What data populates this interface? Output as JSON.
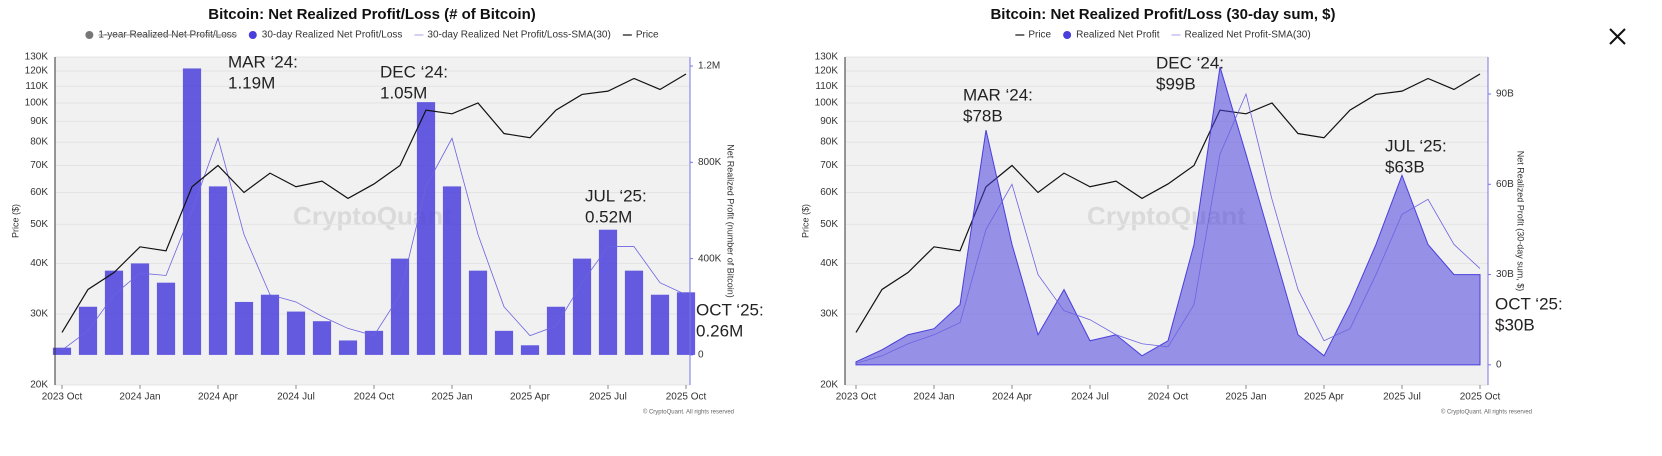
{
  "chart_data": [
    {
      "type": "combo",
      "title": "Bitcoin: Net Realized Profit/Loss (# of Bitcoin)",
      "y_label": "Price ($)",
      "y2_label": "Net Realized Profit (number of Bitcoin)",
      "watermark": "CryptoQuant",
      "footer": "© CryptoQuant. All rights reserved",
      "yscale": "log",
      "grid": true,
      "x": [
        "2023-10",
        "2023-11",
        "2023-12",
        "2024-01",
        "2024-02",
        "2024-03",
        "2024-04",
        "2024-05",
        "2024-06",
        "2024-07",
        "2024-08",
        "2024-09",
        "2024-10",
        "2024-11",
        "2024-12",
        "2025-01",
        "2025-02",
        "2025-03",
        "2025-04",
        "2025-05",
        "2025-06",
        "2025-07",
        "2025-08",
        "2025-09",
        "2025-10"
      ],
      "xticks": [
        {
          "value": "2023-10",
          "label": "2023 Oct"
        },
        {
          "value": "2024-01",
          "label": "2024 Jan"
        },
        {
          "value": "2024-04",
          "label": "2024 Apr"
        },
        {
          "value": "2024-07",
          "label": "2024 Jul"
        },
        {
          "value": "2024-10",
          "label": "2024 Oct"
        },
        {
          "value": "2025-01",
          "label": "2025 Jan"
        },
        {
          "value": "2025-04",
          "label": "2025 Apr"
        },
        {
          "value": "2025-07",
          "label": "2025 Jul"
        },
        {
          "value": "2025-10",
          "label": "2025 Oct"
        }
      ],
      "ylim": [
        20000,
        130000
      ],
      "yticks": [
        {
          "value": 20000,
          "label": "20K"
        },
        {
          "value": 30000,
          "label": "30K"
        },
        {
          "value": 40000,
          "label": "40K"
        },
        {
          "value": 50000,
          "label": "50K"
        },
        {
          "value": 60000,
          "label": "60K"
        },
        {
          "value": 70000,
          "label": "70K"
        },
        {
          "value": 80000,
          "label": "80K"
        },
        {
          "value": 90000,
          "label": "90K"
        },
        {
          "value": 100000,
          "label": "100K"
        },
        {
          "value": 110000,
          "label": "110K"
        },
        {
          "value": 120000,
          "label": "120K"
        },
        {
          "value": 130000,
          "label": "130K"
        }
      ],
      "y2lim": [
        -125000,
        1237500
      ],
      "y2ticks": [
        0,
        {
          "value": 400000,
          "label": "400K"
        },
        {
          "value": 800000,
          "label": "800K"
        },
        {
          "value": 1200000,
          "label": "1.2M"
        }
      ],
      "series": [
        {
          "name": "1-year Realized Net Profit/Loss",
          "color": "#777777",
          "hidden": true
        },
        {
          "name": "30-day Realized Net Profit/Loss",
          "color": "#4a3fdc",
          "type": "bar",
          "axis": "y2",
          "values": [
            30000,
            200000,
            350000,
            380000,
            300000,
            1190000,
            700000,
            220000,
            250000,
            180000,
            140000,
            60000,
            100000,
            400000,
            1050000,
            700000,
            350000,
            100000,
            40000,
            200000,
            400000,
            520000,
            350000,
            250000,
            260000
          ]
        },
        {
          "name": "30-day Realized Net Profit/Loss-SMA(30)",
          "color": "#6c63e0",
          "type": "line",
          "axis": "y2",
          "values": [
            20000,
            100000,
            250000,
            340000,
            330000,
            600000,
            900000,
            500000,
            250000,
            220000,
            160000,
            110000,
            80000,
            250000,
            700000,
            900000,
            500000,
            200000,
            80000,
            120000,
            300000,
            450000,
            450000,
            300000,
            250000
          ]
        },
        {
          "name": "Price",
          "color": "#111111",
          "type": "line",
          "values": [
            27000,
            34500,
            38000,
            44000,
            43000,
            62000,
            70000,
            60000,
            67000,
            62000,
            64000,
            58000,
            63000,
            70000,
            96000,
            94000,
            100000,
            84000,
            82000,
            96000,
            105000,
            107000,
            115000,
            108000,
            118000
          ]
        }
      ],
      "annotations": [
        [
          "MAR ‘24:",
          "1.19M"
        ],
        [
          "DEC ‘24:",
          "1.05M"
        ],
        [
          "JUL ‘25:",
          "0.52M"
        ],
        [
          "OCT ‘25:",
          "0.26M"
        ]
      ]
    },
    {
      "type": "combo",
      "title": "Bitcoin: Net Realized Profit/Loss (30-day sum, $)",
      "y_label": "Price ($)",
      "y2_label": "Net Realized Profit (30-day sum, $)",
      "watermark": "CryptoQuant",
      "footer": "© CryptoQuant. All rights reserved",
      "yscale": "log",
      "grid": true,
      "x": [
        "2023-10",
        "2023-11",
        "2023-12",
        "2024-01",
        "2024-02",
        "2024-03",
        "2024-04",
        "2024-05",
        "2024-06",
        "2024-07",
        "2024-08",
        "2024-09",
        "2024-10",
        "2024-11",
        "2024-12",
        "2025-01",
        "2025-02",
        "2025-03",
        "2025-04",
        "2025-05",
        "2025-06",
        "2025-07",
        "2025-08",
        "2025-09",
        "2025-10"
      ],
      "xticks": [
        {
          "value": "2023-10",
          "label": "2023 Oct"
        },
        {
          "value": "2024-01",
          "label": "2024 Jan"
        },
        {
          "value": "2024-04",
          "label": "2024 Apr"
        },
        {
          "value": "2024-07",
          "label": "2024 Jul"
        },
        {
          "value": "2024-10",
          "label": "2024 Oct"
        },
        {
          "value": "2025-01",
          "label": "2025 Jan"
        },
        {
          "value": "2025-04",
          "label": "2025 Apr"
        },
        {
          "value": "2025-07",
          "label": "2025 Jul"
        },
        {
          "value": "2025-10",
          "label": "2025 Oct"
        }
      ],
      "ylim": [
        20000,
        130000
      ],
      "yticks": [
        {
          "value": 20000,
          "label": "20K"
        },
        {
          "value": 30000,
          "label": "30K"
        },
        {
          "value": 40000,
          "label": "40K"
        },
        {
          "value": 50000,
          "label": "50K"
        },
        {
          "value": 60000,
          "label": "60K"
        },
        {
          "value": 70000,
          "label": "70K"
        },
        {
          "value": 80000,
          "label": "80K"
        },
        {
          "value": 90000,
          "label": "90K"
        },
        {
          "value": 100000,
          "label": "100K"
        },
        {
          "value": 110000,
          "label": "110K"
        },
        {
          "value": 120000,
          "label": "120K"
        },
        {
          "value": 130000,
          "label": "130K"
        }
      ],
      "y2lim": [
        -6700000000,
        102300000000
      ],
      "y2ticks": [
        0,
        {
          "value": 30000000000,
          "label": "30B"
        },
        {
          "value": 60000000000,
          "label": "60B"
        },
        {
          "value": 90000000000,
          "label": "90B"
        }
      ],
      "series": [
        {
          "name": "Price",
          "color": "#111111",
          "type": "line",
          "values": [
            27000,
            34500,
            38000,
            44000,
            43000,
            62000,
            70000,
            60000,
            67000,
            62000,
            64000,
            58000,
            63000,
            70000,
            96000,
            94000,
            100000,
            84000,
            82000,
            96000,
            105000,
            107000,
            115000,
            108000,
            118000
          ]
        },
        {
          "name": "Realized Net Profit",
          "color": "#4a3fdc",
          "type": "area",
          "axis": "y2",
          "values": [
            1000000000,
            5000000000,
            10000000000,
            12000000000,
            20000000000,
            78000000000,
            40000000000,
            10000000000,
            25000000000,
            8000000000,
            10000000000,
            3000000000,
            8000000000,
            40000000000,
            99000000000,
            70000000000,
            40000000000,
            10000000000,
            3000000000,
            20000000000,
            40000000000,
            63000000000,
            40000000000,
            30000000000,
            30000000000
          ]
        },
        {
          "name": "Realized Net Profit-SMA(30)",
          "color": "#6c63e0",
          "type": "line",
          "axis": "y2",
          "values": [
            500000000,
            3000000000,
            7000000000,
            10000000000,
            14000000000,
            45000000000,
            60000000000,
            30000000000,
            18000000000,
            15000000000,
            10000000000,
            7000000000,
            6000000000,
            20000000000,
            70000000000,
            90000000000,
            55000000000,
            25000000000,
            8000000000,
            12000000000,
            30000000000,
            50000000000,
            55000000000,
            40000000000,
            32000000000
          ]
        }
      ],
      "annotations": [
        [
          "MAR ‘24:",
          "$78B"
        ],
        [
          "DEC ‘24:",
          "$99B"
        ],
        [
          "JUL ‘25:",
          "$63B"
        ],
        [
          "OCT ‘25:",
          "$30B"
        ]
      ]
    }
  ]
}
